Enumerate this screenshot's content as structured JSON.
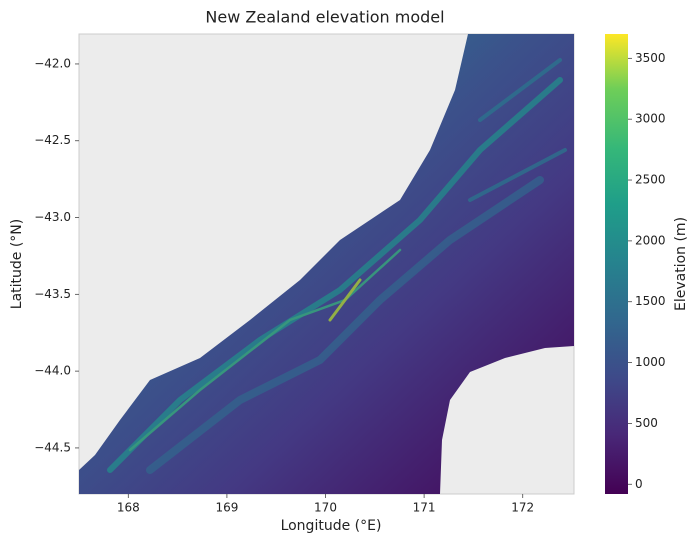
{
  "chart_data": {
    "type": "heatmap",
    "title": "New Zealand elevation model",
    "x_label": "Longitude (°E)",
    "y_label": "Latitude (°N)",
    "xlim": [
      167.5,
      172.52
    ],
    "ylim": [
      -44.8,
      -41.805
    ],
    "xticks": [
      168,
      169,
      170,
      171,
      172
    ],
    "yticks": [
      {
        "value": -42.0,
        "label": "−42.0"
      },
      {
        "value": -42.5,
        "label": "−42.5"
      },
      {
        "value": -43.0,
        "label": "−43.0"
      },
      {
        "value": -43.5,
        "label": "−43.5"
      },
      {
        "value": -44.0,
        "label": "−44.0"
      },
      {
        "value": -44.5,
        "label": "−44.5"
      }
    ],
    "colorbar": {
      "label": "Elevation (m)",
      "lim": [
        -80,
        3700
      ],
      "ticks": [
        0,
        500,
        1000,
        1500,
        2000,
        2500,
        3000,
        3500
      ]
    }
  }
}
